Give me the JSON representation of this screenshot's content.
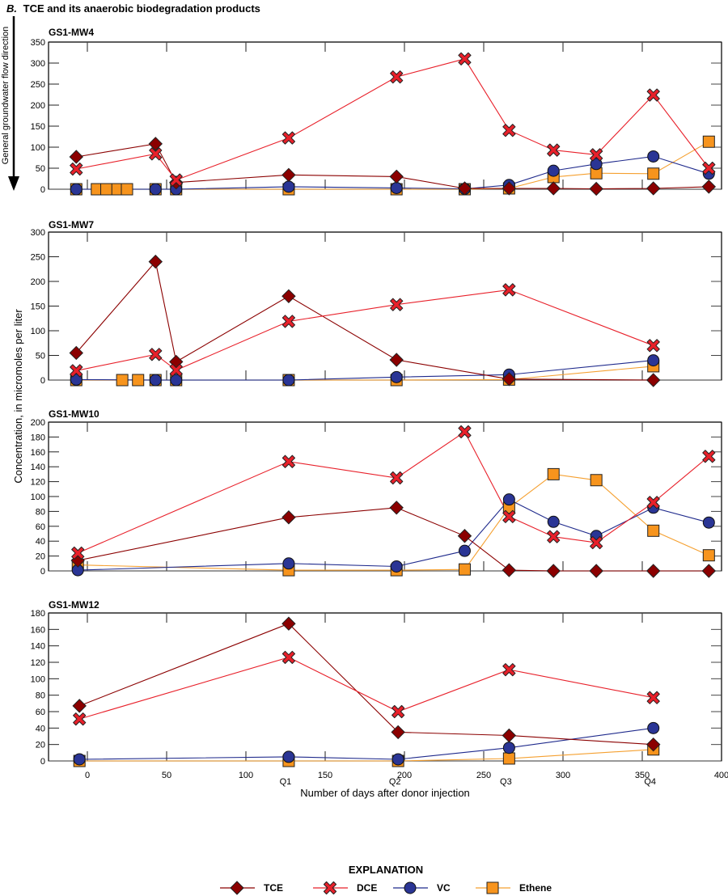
{
  "chart_data": {
    "type": "line",
    "title": "B. TCE and its anaerobic biodegradation products",
    "title_prefix": "B.",
    "title_text": "TCE and its anaerobic biodegradation products",
    "xlabel": "Number of days after donor injection",
    "ylabel": "Concentration, in micromoles per liter",
    "flow_label": "General groundwater flow direction",
    "xlim": [
      -25,
      400
    ],
    "xticks": [
      0,
      50,
      100,
      150,
      200,
      250,
      300,
      350,
      400
    ],
    "quarter_labels": [
      {
        "label": "Q1",
        "x": 127
      },
      {
        "label": "Q2",
        "x": 196
      },
      {
        "label": "Q3",
        "x": 266
      },
      {
        "label": "Q4",
        "x": 357
      }
    ],
    "legend": {
      "title": "EXPLANATION",
      "placement": "bottom-center",
      "entries": [
        {
          "name": "TCE",
          "marker": "diamond",
          "line_color": "#8b0000",
          "fill": "#8b0000"
        },
        {
          "name": "DCE",
          "marker": "x",
          "line_color": "#e8202a",
          "fill": "#e8202a"
        },
        {
          "name": "VC",
          "marker": "circle",
          "line_color": "#1f2a8c",
          "fill": "#2a3595"
        },
        {
          "name": "Ethene",
          "marker": "square",
          "line_color": "#f5a030",
          "fill": "#f7941d"
        }
      ]
    },
    "panels": [
      {
        "name": "GS1-MW4",
        "ylim": [
          0,
          350
        ],
        "yticks": [
          0,
          50,
          100,
          150,
          200,
          250,
          300,
          350
        ],
        "series": [
          {
            "name": "TCE",
            "x": [
              -7,
              43,
              56,
              127,
              195,
              238,
              266,
              294,
              321,
              357,
              392
            ],
            "y": [
              77,
              108,
              16,
              34,
              30,
              2,
              2,
              2,
              1,
              2,
              6
            ]
          },
          {
            "name": "DCE",
            "x": [
              -7,
              43,
              56,
              127,
              195,
              238,
              266,
              294,
              321,
              357,
              392
            ],
            "y": [
              48,
              84,
              22,
              122,
              267,
              310,
              140,
              93,
              82,
              224,
              50
            ]
          },
          {
            "name": "VC",
            "x": [
              -7,
              43,
              56,
              127,
              195,
              238,
              266,
              294,
              321,
              357,
              392
            ],
            "y": [
              0,
              0,
              0,
              6,
              3,
              1,
              10,
              44,
              60,
              78,
              37
            ]
          },
          {
            "name": "Ethene",
            "x": [
              -7,
              6,
              12,
              19,
              25,
              43,
              56,
              127,
              195,
              238,
              266,
              294,
              321,
              357,
              392
            ],
            "y": [
              0,
              0,
              0,
              0,
              0,
              0,
              0,
              0,
              0,
              0,
              2,
              29,
              38,
              37,
              113
            ]
          }
        ]
      },
      {
        "name": "GS1-MW7",
        "ylim": [
          0,
          300
        ],
        "yticks": [
          0,
          50,
          100,
          150,
          200,
          250,
          300
        ],
        "series": [
          {
            "name": "TCE",
            "x": [
              -7,
              43,
              56,
              127,
              195,
              266,
              357
            ],
            "y": [
              55,
              240,
              37,
              170,
              41,
              2,
              0
            ]
          },
          {
            "name": "DCE",
            "x": [
              -7,
              43,
              56,
              127,
              195,
              266,
              357
            ],
            "y": [
              19,
              52,
              20,
              119,
              153,
              183,
              70
            ]
          },
          {
            "name": "VC",
            "x": [
              -7,
              43,
              56,
              127,
              195,
              266,
              357
            ],
            "y": [
              1,
              0,
              0,
              0,
              6,
              11,
              40
            ]
          },
          {
            "name": "Ethene",
            "x": [
              -7,
              22,
              32,
              43,
              56,
              127,
              195,
              266,
              357
            ],
            "y": [
              0,
              0,
              0,
              0,
              0,
              0,
              0,
              1,
              28
            ]
          }
        ]
      },
      {
        "name": "GS1-MW10",
        "ylim": [
          0,
          200
        ],
        "yticks": [
          0,
          20,
          40,
          60,
          80,
          100,
          120,
          140,
          160,
          180,
          200
        ],
        "series": [
          {
            "name": "TCE",
            "x": [
              -6,
              127,
              195,
              238,
              266,
              294,
              321,
              357,
              392
            ],
            "y": [
              14,
              72,
              85,
              47,
              1,
              0,
              0,
              0,
              0
            ]
          },
          {
            "name": "DCE",
            "x": [
              -6,
              127,
              195,
              238,
              266,
              294,
              321,
              357,
              392
            ],
            "y": [
              24,
              147,
              125,
              187,
              73,
              46,
              38,
              92,
              154
            ]
          },
          {
            "name": "VC",
            "x": [
              -6,
              127,
              195,
              238,
              266,
              294,
              321,
              357,
              392
            ],
            "y": [
              1,
              10,
              6,
              27,
              96,
              66,
              47,
              85,
              65
            ]
          },
          {
            "name": "Ethene",
            "x": [
              -6,
              127,
              195,
              238,
              266,
              294,
              321,
              357,
              392
            ],
            "y": [
              8,
              1,
              1,
              2,
              85,
              130,
              122,
              54,
              21
            ]
          }
        ]
      },
      {
        "name": "GS1-MW12",
        "ylim": [
          0,
          180
        ],
        "yticks": [
          0,
          20,
          40,
          60,
          80,
          100,
          120,
          140,
          160,
          180
        ],
        "series": [
          {
            "name": "TCE",
            "x": [
              -5,
              127,
              196,
              266,
              357
            ],
            "y": [
              67,
              167,
              35,
              31,
              20
            ]
          },
          {
            "name": "DCE",
            "x": [
              -5,
              127,
              196,
              266,
              357
            ],
            "y": [
              51,
              126,
              60,
              111,
              77
            ]
          },
          {
            "name": "VC",
            "x": [
              -5,
              127,
              196,
              266,
              357
            ],
            "y": [
              2,
              5,
              2,
              16,
              40
            ]
          },
          {
            "name": "Ethene",
            "x": [
              -5,
              127,
              196,
              266,
              357
            ],
            "y": [
              0,
              0,
              0,
              3,
              14
            ]
          }
        ]
      }
    ]
  }
}
